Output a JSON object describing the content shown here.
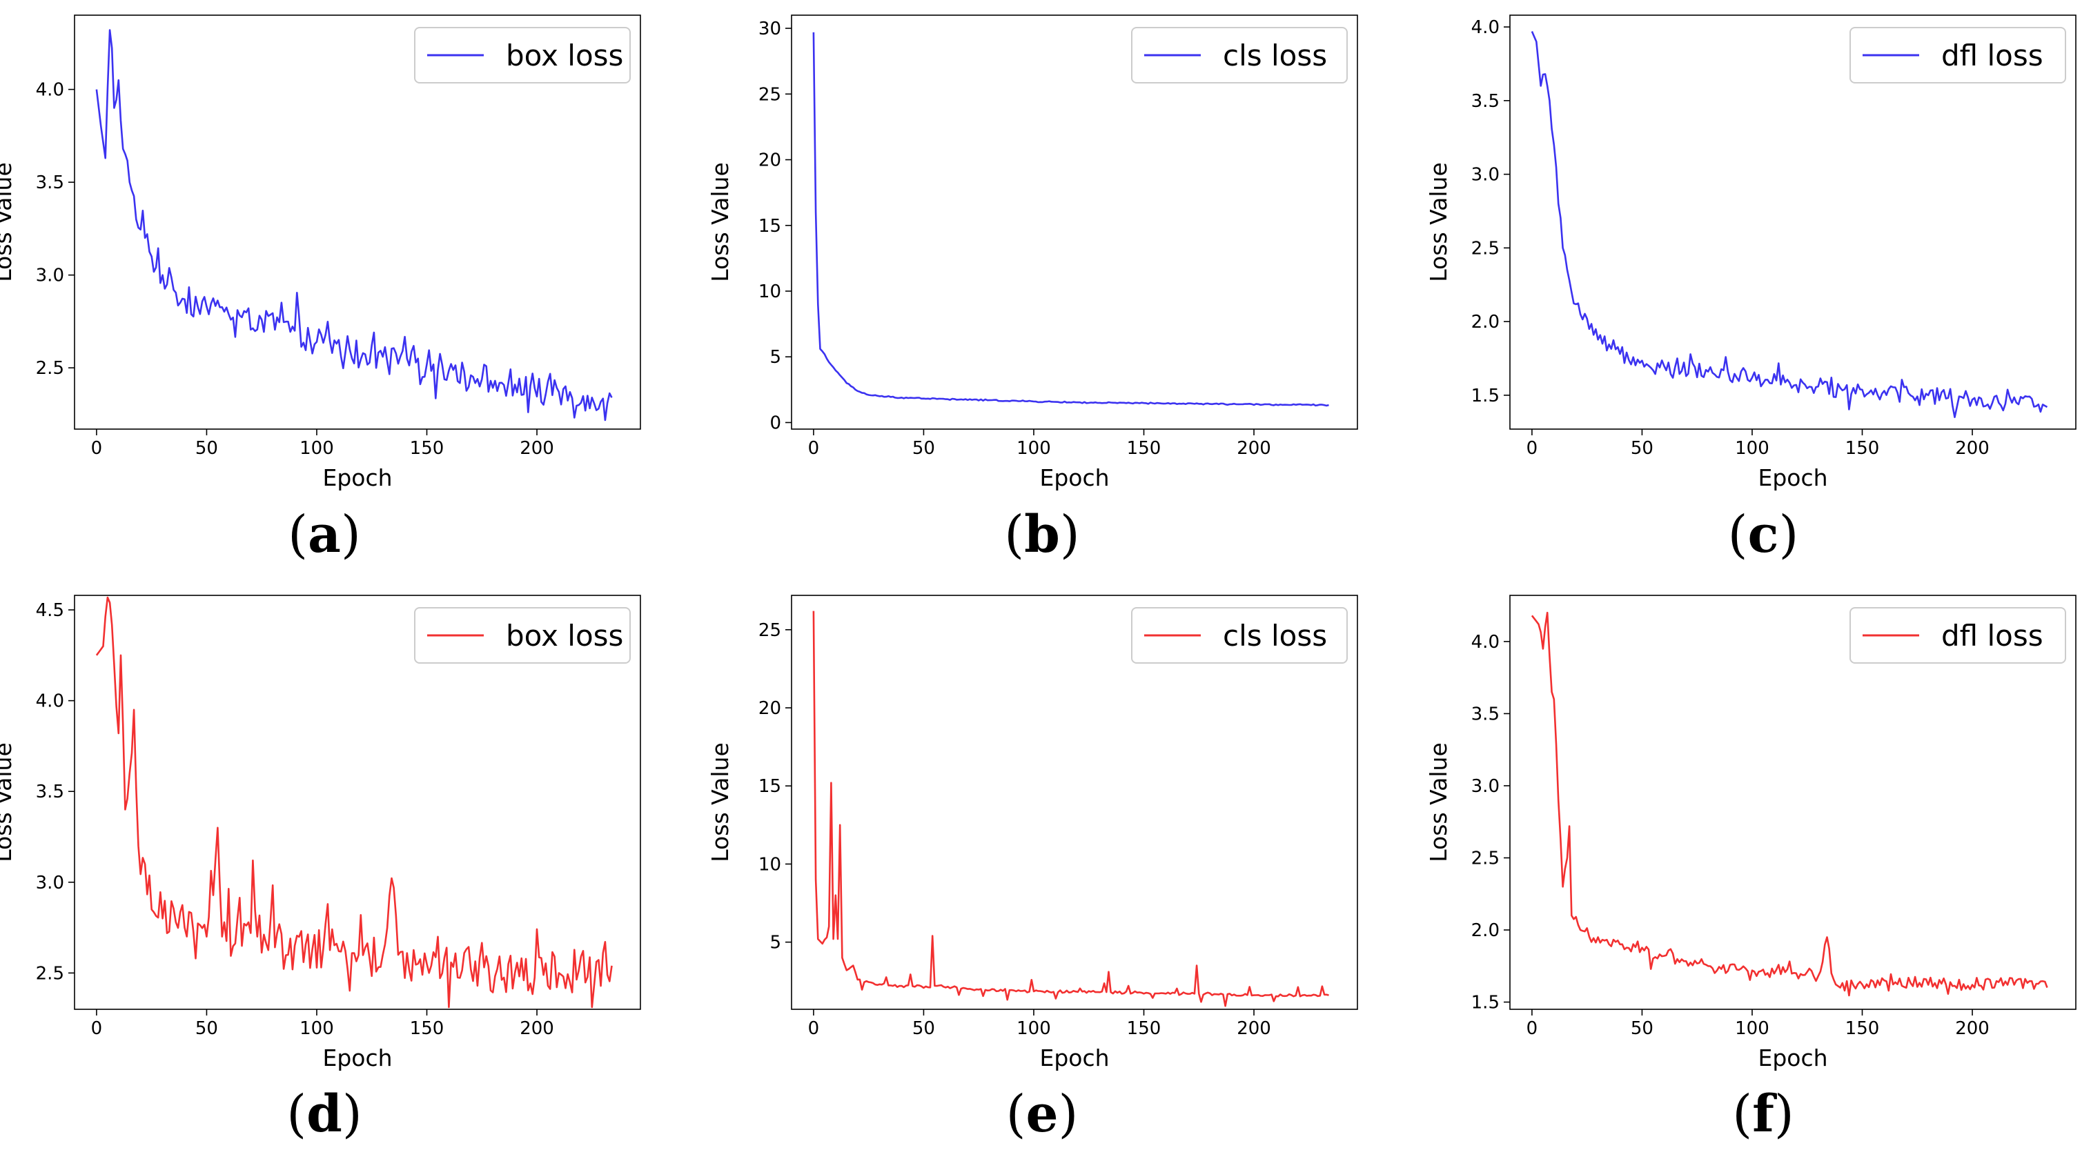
{
  "figure": {
    "xlabel": "Epoch",
    "ylabel": "Loss Value",
    "line_colors": {
      "blue": "#3b32f0",
      "red": "#f23030"
    }
  },
  "chart_data": [
    {
      "type": "line",
      "caption": "(a)",
      "caption_letter": "a",
      "color": "#3b32f0",
      "legend": "box loss",
      "xlabel": "Epoch",
      "ylabel": "Loss Value",
      "xlim": [
        -10,
        247
      ],
      "ylim": [
        2.17,
        4.4
      ],
      "xticks": [
        0,
        50,
        100,
        150,
        200
      ],
      "yticks": [
        2.5,
        3.0,
        3.5,
        4.0
      ],
      "ytick_labels": [
        "2.5",
        "3.0",
        "3.5",
        "4.0"
      ],
      "keypoints": [
        [
          0,
          4.0
        ],
        [
          2,
          3.8
        ],
        [
          4,
          3.63
        ],
        [
          6,
          4.32
        ],
        [
          8,
          3.9
        ],
        [
          10,
          4.05
        ],
        [
          12,
          3.68
        ],
        [
          15,
          3.5
        ],
        [
          18,
          3.3
        ],
        [
          22,
          3.2
        ],
        [
          25,
          3.1
        ],
        [
          30,
          3.0
        ],
        [
          35,
          2.92
        ],
        [
          40,
          2.87
        ],
        [
          50,
          2.83
        ],
        [
          60,
          2.79
        ],
        [
          75,
          2.76
        ],
        [
          90,
          2.7
        ],
        [
          100,
          2.64
        ],
        [
          115,
          2.6
        ],
        [
          130,
          2.56
        ],
        [
          150,
          2.52
        ],
        [
          170,
          2.46
        ],
        [
          190,
          2.41
        ],
        [
          210,
          2.37
        ],
        [
          225,
          2.34
        ],
        [
          234,
          2.34
        ]
      ],
      "noise": {
        "amplitude": 0.09,
        "spike_every": 7,
        "spike_amplitude": 0.1
      },
      "points": 235
    },
    {
      "type": "line",
      "caption": "(b)",
      "caption_letter": "b",
      "color": "#3b32f0",
      "legend": "cls loss",
      "xlabel": "Epoch",
      "ylabel": "Loss Value",
      "xlim": [
        -10,
        247
      ],
      "ylim": [
        -0.5,
        31
      ],
      "xticks": [
        0,
        50,
        100,
        150,
        200
      ],
      "yticks": [
        0,
        5,
        10,
        15,
        20,
        25,
        30
      ],
      "ytick_labels": [
        "0",
        "5",
        "10",
        "15",
        "20",
        "25",
        "30"
      ],
      "keypoints": [
        [
          0,
          29.7
        ],
        [
          1,
          16
        ],
        [
          2,
          9
        ],
        [
          3,
          5.6
        ],
        [
          5,
          5.2
        ],
        [
          7,
          4.6
        ],
        [
          9,
          4.2
        ],
        [
          12,
          3.6
        ],
        [
          15,
          3.0
        ],
        [
          20,
          2.4
        ],
        [
          25,
          2.1
        ],
        [
          30,
          2.0
        ],
        [
          40,
          1.9
        ],
        [
          60,
          1.78
        ],
        [
          80,
          1.7
        ],
        [
          100,
          1.6
        ],
        [
          130,
          1.5
        ],
        [
          160,
          1.45
        ],
        [
          190,
          1.4
        ],
        [
          215,
          1.35
        ],
        [
          234,
          1.33
        ]
      ],
      "noise": {
        "amplitude": 0.06,
        "spike_every": 0,
        "spike_amplitude": 0
      },
      "points": 235
    },
    {
      "type": "line",
      "caption": "(c)",
      "caption_letter": "c",
      "color": "#3b32f0",
      "legend": "dfl loss",
      "xlabel": "Epoch",
      "ylabel": "Loss Value",
      "xlim": [
        -10,
        247
      ],
      "ylim": [
        1.27,
        4.08
      ],
      "xticks": [
        0,
        50,
        100,
        150,
        200
      ],
      "yticks": [
        1.5,
        2.0,
        2.5,
        3.0,
        3.5,
        4.0
      ],
      "ytick_labels": [
        "1.5",
        "2.0",
        "2.5",
        "3.0",
        "3.5",
        "4.0"
      ],
      "keypoints": [
        [
          0,
          3.97
        ],
        [
          2,
          3.9
        ],
        [
          4,
          3.6
        ],
        [
          6,
          3.68
        ],
        [
          8,
          3.5
        ],
        [
          10,
          3.2
        ],
        [
          12,
          2.8
        ],
        [
          14,
          2.5
        ],
        [
          16,
          2.35
        ],
        [
          18,
          2.2
        ],
        [
          22,
          2.05
        ],
        [
          26,
          1.95
        ],
        [
          32,
          1.85
        ],
        [
          40,
          1.78
        ],
        [
          60,
          1.7
        ],
        [
          80,
          1.66
        ],
        [
          100,
          1.62
        ],
        [
          120,
          1.57
        ],
        [
          140,
          1.55
        ],
        [
          160,
          1.53
        ],
        [
          180,
          1.5
        ],
        [
          200,
          1.47
        ],
        [
          220,
          1.45
        ],
        [
          234,
          1.42
        ]
      ],
      "noise": {
        "amplitude": 0.07,
        "spike_every": 8,
        "spike_amplitude": 0.08
      },
      "points": 235
    },
    {
      "type": "line",
      "caption": "(d)",
      "caption_letter": "d",
      "color": "#f23030",
      "legend": "box loss",
      "xlabel": "Epoch",
      "ylabel": "Loss Value",
      "xlim": [
        -10,
        247
      ],
      "ylim": [
        2.3,
        4.58
      ],
      "xticks": [
        0,
        50,
        100,
        150,
        200
      ],
      "yticks": [
        2.5,
        3.0,
        3.5,
        4.0,
        4.5
      ],
      "ytick_labels": [
        "2.5",
        "3.0",
        "3.5",
        "4.0",
        "4.5"
      ],
      "keypoints": [
        [
          0,
          4.25
        ],
        [
          3,
          4.3
        ],
        [
          6,
          4.54
        ],
        [
          8,
          4.2
        ],
        [
          10,
          3.82
        ],
        [
          11,
          4.25
        ],
        [
          13,
          3.4
        ],
        [
          15,
          3.6
        ],
        [
          17,
          3.95
        ],
        [
          19,
          3.2
        ],
        [
          22,
          3.1
        ],
        [
          25,
          2.85
        ],
        [
          30,
          2.8
        ],
        [
          40,
          2.75
        ],
        [
          50,
          2.7
        ],
        [
          55,
          3.3
        ],
        [
          57,
          2.7
        ],
        [
          70,
          2.72
        ],
        [
          71,
          3.12
        ],
        [
          73,
          2.7
        ],
        [
          90,
          2.65
        ],
        [
          110,
          2.62
        ],
        [
          130,
          2.6
        ],
        [
          135,
          2.97
        ],
        [
          137,
          2.6
        ],
        [
          150,
          2.55
        ],
        [
          170,
          2.52
        ],
        [
          190,
          2.5
        ],
        [
          210,
          2.5
        ],
        [
          234,
          2.54
        ]
      ],
      "noise": {
        "amplitude": 0.15,
        "spike_every": 5,
        "spike_amplitude": 0.14
      },
      "points": 235
    },
    {
      "type": "line",
      "caption": "(e)",
      "caption_letter": "e",
      "color": "#f23030",
      "legend": "cls loss",
      "xlabel": "Epoch",
      "ylabel": "Loss Value",
      "xlim": [
        -10,
        247
      ],
      "ylim": [
        0.7,
        27.2
      ],
      "xticks": [
        0,
        50,
        100,
        150,
        200
      ],
      "yticks": [
        5,
        10,
        15,
        20,
        25
      ],
      "ytick_labels": [
        "5",
        "10",
        "15",
        "20",
        "25"
      ],
      "keypoints": [
        [
          0,
          26.2
        ],
        [
          1,
          9
        ],
        [
          2,
          5.2
        ],
        [
          4,
          4.9
        ],
        [
          6,
          5.3
        ],
        [
          7,
          6
        ],
        [
          8,
          15.2
        ],
        [
          9,
          5.2
        ],
        [
          10,
          8
        ],
        [
          11,
          5.2
        ],
        [
          12,
          12.5
        ],
        [
          13,
          4
        ],
        [
          15,
          3.2
        ],
        [
          18,
          3.5
        ],
        [
          20,
          2.6
        ],
        [
          30,
          2.3
        ],
        [
          40,
          2.2
        ],
        [
          53,
          2.1
        ],
        [
          54,
          5.4
        ],
        [
          55,
          2.2
        ],
        [
          70,
          2.0
        ],
        [
          100,
          1.85
        ],
        [
          133,
          1.8
        ],
        [
          134,
          3.1
        ],
        [
          135,
          1.8
        ],
        [
          160,
          1.7
        ],
        [
          173,
          1.7
        ],
        [
          174,
          3.5
        ],
        [
          175,
          1.7
        ],
        [
          200,
          1.6
        ],
        [
          234,
          1.6
        ]
      ],
      "noise": {
        "amplitude": 0.1,
        "spike_every": 11,
        "spike_amplitude": 0.5
      },
      "points": 235
    },
    {
      "type": "line",
      "caption": "(f)",
      "caption_letter": "f",
      "color": "#f23030",
      "legend": "dfl loss",
      "xlabel": "Epoch",
      "ylabel": "Loss Value",
      "xlim": [
        -10,
        247
      ],
      "ylim": [
        1.45,
        4.32
      ],
      "xticks": [
        0,
        50,
        100,
        150,
        200
      ],
      "yticks": [
        1.5,
        2.0,
        2.5,
        3.0,
        3.5,
        4.0
      ],
      "ytick_labels": [
        "1.5",
        "2.0",
        "2.5",
        "3.0",
        "3.5",
        "4.0"
      ],
      "keypoints": [
        [
          0,
          4.18
        ],
        [
          3,
          4.12
        ],
        [
          5,
          3.95
        ],
        [
          7,
          4.2
        ],
        [
          8,
          3.9
        ],
        [
          10,
          3.6
        ],
        [
          12,
          2.9
        ],
        [
          14,
          2.3
        ],
        [
          16,
          2.5
        ],
        [
          17,
          2.72
        ],
        [
          18,
          2.1
        ],
        [
          22,
          2.0
        ],
        [
          30,
          1.95
        ],
        [
          40,
          1.9
        ],
        [
          60,
          1.82
        ],
        [
          80,
          1.75
        ],
        [
          100,
          1.72
        ],
        [
          120,
          1.7
        ],
        [
          130,
          1.68
        ],
        [
          134,
          1.95
        ],
        [
          136,
          1.7
        ],
        [
          140,
          1.6
        ],
        [
          160,
          1.65
        ],
        [
          180,
          1.62
        ],
        [
          200,
          1.62
        ],
        [
          220,
          1.65
        ],
        [
          234,
          1.6
        ]
      ],
      "noise": {
        "amplitude": 0.055,
        "spike_every": 9,
        "spike_amplitude": 0.05
      },
      "points": 235
    }
  ]
}
